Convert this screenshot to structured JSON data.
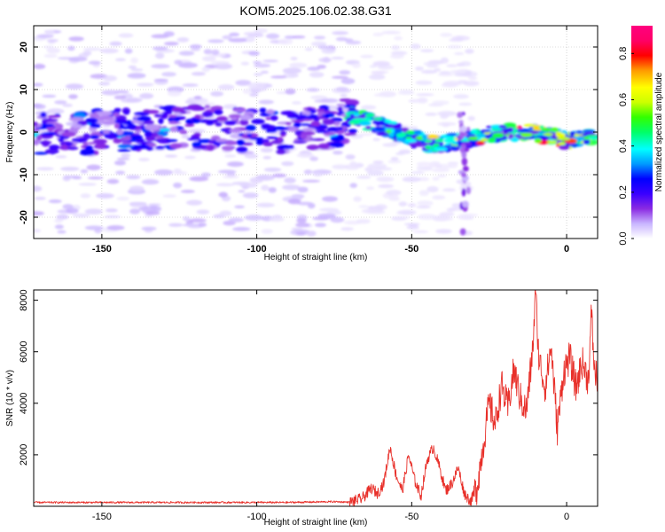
{
  "title": "KOM5.2025.106.02.38.G31",
  "chart_data": [
    {
      "type": "heatmap",
      "xlabel": "Height of straight line (km)",
      "ylabel": "Frequency (Hz)",
      "xlim": [
        -172,
        10
      ],
      "ylim": [
        -25,
        25
      ],
      "x_ticks": [
        -150,
        -100,
        -50,
        0
      ],
      "y_ticks": [
        20,
        10,
        0,
        -10,
        -20
      ],
      "colorbar": {
        "label": "Normalized spectral amplitude",
        "range": [
          0,
          0.92
        ],
        "ticks": [
          0.0,
          0.2,
          0.4,
          0.6,
          0.8
        ],
        "colormap": [
          "#ffffff",
          "#c9b5ff",
          "#8a2be2",
          "#3a00ff",
          "#0000ff",
          "#0099ff",
          "#00ffff",
          "#00ff66",
          "#33ff00",
          "#ccff00",
          "#ffff00",
          "#ff9900",
          "#ff0000",
          "#ff0066",
          "#ff007f"
        ]
      },
      "ridge": {
        "x": [
          -172,
          -150,
          -130,
          -110,
          -90,
          -75,
          -70,
          -62,
          -55,
          -48,
          -42,
          -35,
          -28,
          -20,
          -12,
          -5,
          0,
          5,
          10
        ],
        "freq": [
          0,
          0,
          1,
          1,
          0,
          1,
          4,
          2,
          0,
          -2,
          -3,
          -2,
          -1,
          0,
          0,
          -1,
          -2,
          -1,
          -1
        ]
      },
      "grid": true
    },
    {
      "type": "line",
      "xlabel": "Height of straight line (km)",
      "ylabel": "SNR (10 * v/v)",
      "xlim": [
        -172,
        10
      ],
      "ylim": [
        0,
        8400
      ],
      "x_ticks": [
        -150,
        -100,
        -50,
        0
      ],
      "y_ticks": [
        2000,
        4000,
        6000,
        8000
      ],
      "color": "#e8302a",
      "series": [
        {
          "x": [
            -172,
            -150,
            -120,
            -90,
            -75,
            -70,
            -66,
            -63,
            -61,
            -59,
            -57,
            -55,
            -53,
            -51,
            -49,
            -47,
            -45,
            -43,
            -41,
            -39,
            -37,
            -35,
            -33,
            -31,
            -29,
            -27,
            -25,
            -23,
            -21,
            -19,
            -17,
            -15,
            -13,
            -11,
            -10,
            -9,
            -7,
            -5,
            -3,
            -1,
            1,
            3,
            5,
            7,
            8,
            9,
            10
          ],
          "y": [
            150,
            150,
            150,
            150,
            180,
            160,
            300,
            700,
            500,
            900,
            2300,
            1200,
            600,
            2000,
            1000,
            400,
            1800,
            2300,
            1500,
            600,
            900,
            1500,
            500,
            200,
            700,
            2300,
            4000,
            3200,
            4700,
            3800,
            5300,
            4200,
            3700,
            6000,
            8300,
            5800,
            4600,
            6200,
            3000,
            5200,
            5800,
            4600,
            5600,
            4900,
            7500,
            5200,
            5000
          ]
        }
      ],
      "grid": false
    }
  ]
}
